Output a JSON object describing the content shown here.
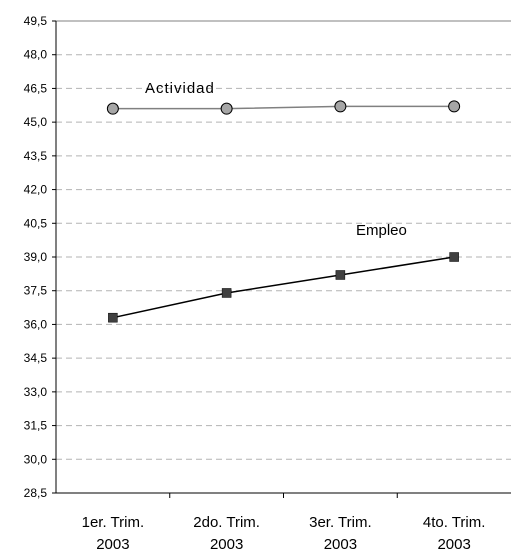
{
  "chart_data": {
    "type": "line",
    "categories": [
      [
        "1er. Trim.",
        "2003"
      ],
      [
        "2do. Trim.",
        "2003"
      ],
      [
        "3er. Trim.",
        "2003"
      ],
      [
        "4to. Trim.",
        "2003"
      ]
    ],
    "series": [
      {
        "name": "Actividad",
        "values": [
          45.6,
          45.6,
          45.7,
          45.7
        ],
        "marker": "circle",
        "color": "#808080",
        "marker_color": "#a6a6a6"
      },
      {
        "name": "Empleo",
        "values": [
          36.3,
          37.4,
          38.2,
          39.0
        ],
        "marker": "square",
        "color": "#000000",
        "marker_color": "#404040"
      }
    ],
    "y_ticks": [
      "28,5",
      "30,0",
      "31,5",
      "33,0",
      "34,5",
      "36,0",
      "37,5",
      "39,0",
      "40,5",
      "42,0",
      "43,5",
      "45,0",
      "46,5",
      "48,0",
      "49,5"
    ],
    "ylim": [
      28.5,
      49.5
    ],
    "ytick_step": 1.5,
    "grid": true,
    "grid_style": "dashed",
    "legend": "inline labels"
  }
}
